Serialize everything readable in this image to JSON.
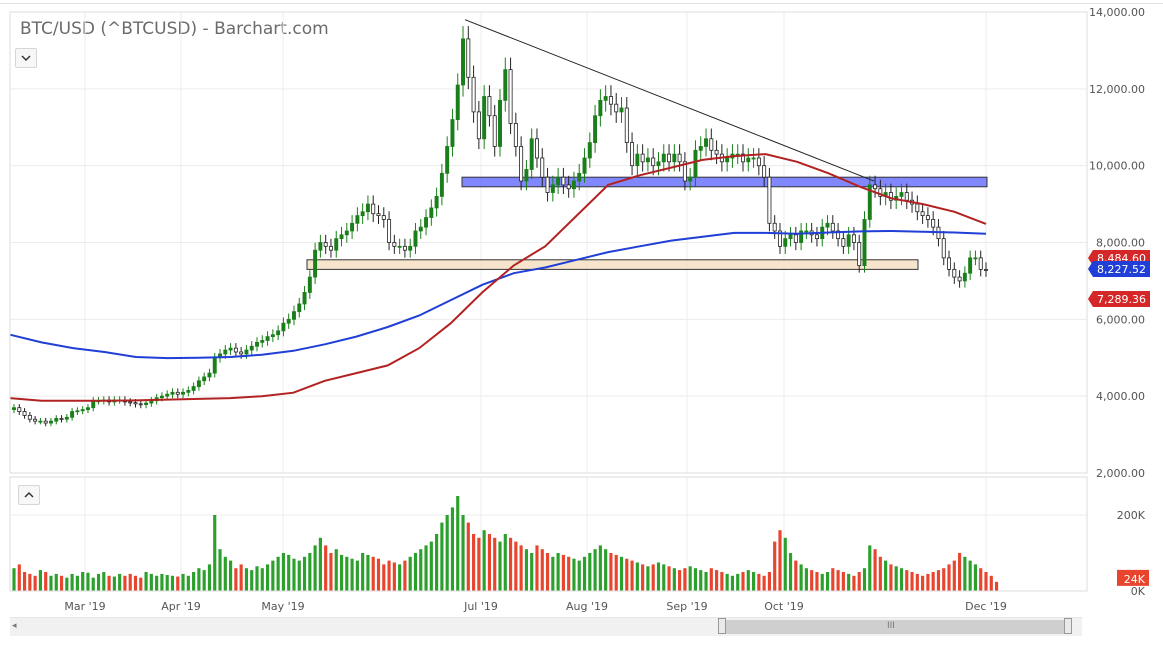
{
  "header": {
    "title": "BTC/USD (^BTCUSD) - Barchart.com"
  },
  "chart_data": {
    "type": "candlestick",
    "symbol": "BTC/USD",
    "price_axis": {
      "min": 2000,
      "max": 14000,
      "ticks": [
        "2,000.00",
        "4,000.00",
        "6,000.00",
        "8,000.00",
        "10,000.00",
        "12,000.00",
        "14,000.00"
      ]
    },
    "volume_axis": {
      "ticks": [
        "200K",
        "0K"
      ],
      "current_label": "24K",
      "current_value": 24000,
      "ylim": [
        0,
        300000
      ]
    },
    "x_labels": [
      "Mar '19",
      "Apr '19",
      "May '19",
      "Jul '19",
      "Aug '19",
      "Sep '19",
      "Oct '19",
      "Dec '19"
    ],
    "price_tags": [
      {
        "label": "8,484.60",
        "value": 8484.6,
        "color": "#d62728"
      },
      {
        "label": "8,227.52",
        "value": 8227.52,
        "color": "#1f3fd6"
      },
      {
        "label": "7,289.36",
        "value": 7289.36,
        "color": "#d62728"
      }
    ],
    "ma_fast": {
      "color": "#b22222",
      "values": [
        3950,
        3880,
        3880,
        3880,
        3890,
        3910,
        3930,
        3950,
        4000,
        4090,
        4400,
        4600,
        4800,
        5250,
        5900,
        6700,
        7400,
        7900,
        8700,
        9500,
        9750,
        9950,
        10150,
        10250,
        10300,
        10100,
        9800,
        9450,
        9150,
        9000,
        8800,
        8484
      ]
    },
    "ma_slow": {
      "color": "#1f3fd6",
      "values": [
        5600,
        5400,
        5250,
        5150,
        5020,
        4990,
        5000,
        5020,
        5080,
        5180,
        5350,
        5550,
        5800,
        6100,
        6500,
        6900,
        7200,
        7350,
        7550,
        7750,
        7900,
        8050,
        8150,
        8250,
        8250,
        8230,
        8260,
        8290,
        8300,
        8280,
        8260,
        8227
      ]
    },
    "trendline": {
      "from": {
        "label": "Jul '19",
        "price": 13800
      },
      "to": {
        "label": "Oct '19",
        "price": 9600
      }
    },
    "zones": [
      {
        "color": "#6b73ff",
        "from_price": 9450,
        "to_price": 9700
      },
      {
        "color": "#f5dfc3",
        "from_price": 7300,
        "to_price": 7550
      }
    ],
    "candles": [
      [
        3650,
        3700,
        3600,
        3500,
        3400,
        3350,
        3350,
        3300,
        3350,
        3420,
        3400,
        3450,
        3600,
        3620,
        3650,
        3700,
        3880,
        3880,
        3900,
        3850,
        3900,
        3900,
        3850,
        3830,
        3800,
        3780,
        3820,
        3880,
        3960,
        4000,
        4050,
        4100,
        4050,
        4100,
        4150,
        4250,
        4400,
        4500,
        4600,
        5000,
        5100,
        5200,
        5250,
        5150,
        5100,
        5200,
        5300,
        5400,
        5450,
        5550,
        5600,
        5700,
        5900,
        6000,
        6200,
        6400,
        6700,
        7100,
        7800,
        8000,
        7900,
        7800,
        8100,
        8200,
        8300,
        8500,
        8700,
        8800,
        9000,
        8750,
        8700,
        8600,
        8000,
        7900,
        7900,
        7800,
        7900,
        8300,
        8400,
        8650,
        8900,
        9200,
        9800,
        10500,
        11200,
        12100,
        13300,
        12300,
        11400,
        10700,
        11800,
        11300,
        10500,
        11700,
        12500,
        11100,
        10500,
        9600,
        9900,
        10700,
        10200,
        9700,
        9300,
        9500,
        9700,
        9500,
        9400,
        9600,
        9800,
        10200,
        10600,
        11300,
        11700,
        11800,
        11600,
        11400,
        11500,
        10600,
        10000,
        10300,
        10100,
        10200,
        10000,
        10100,
        10300,
        10100,
        10300,
        10100,
        9600,
        9700,
        10400,
        10500,
        10700,
        10400,
        10300,
        10100,
        10200,
        10300,
        10300,
        10100,
        10200,
        10200,
        10000,
        9700,
        8500,
        8300,
        7900,
        8100,
        8200,
        8000,
        8300,
        8300,
        8200,
        8100,
        8400,
        8500,
        8300,
        8100,
        7900,
        8200,
        8000,
        7400,
        8600,
        9500,
        9400,
        9200,
        9300,
        9100,
        9200,
        9300,
        9100,
        9000,
        8800,
        8700,
        8600,
        8400,
        8100,
        7600,
        7300,
        7100,
        7000,
        7200,
        7600,
        7600,
        7300
      ],
      [
        3700,
        3600,
        3500,
        3400,
        3350,
        3350,
        3300,
        3350,
        3420,
        3400,
        3450,
        3600,
        3620,
        3650,
        3700,
        3880,
        3880,
        3900,
        3850,
        3900,
        3900,
        3850,
        3830,
        3800,
        3780,
        3820,
        3880,
        3960,
        4000,
        4050,
        4100,
        4050,
        4100,
        4150,
        4250,
        4400,
        4500,
        4600,
        5000,
        5100,
        5200,
        5250,
        5150,
        5100,
        5200,
        5300,
        5400,
        5450,
        5550,
        5600,
        5700,
        5900,
        6000,
        6200,
        6400,
        6700,
        7100,
        7800,
        8000,
        7900,
        7800,
        8100,
        8200,
        8300,
        8500,
        8700,
        8800,
        9000,
        8750,
        8700,
        8600,
        8000,
        7900,
        7900,
        7800,
        7900,
        8300,
        8400,
        8650,
        8900,
        9200,
        9800,
        10500,
        11200,
        12100,
        13300,
        12300,
        11400,
        10700,
        11800,
        11300,
        10500,
        11700,
        12500,
        11100,
        10500,
        9600,
        9900,
        10700,
        10200,
        9700,
        9300,
        9500,
        9700,
        9500,
        9400,
        9600,
        9800,
        10200,
        10600,
        11300,
        11700,
        11800,
        11600,
        11400,
        11500,
        10600,
        10000,
        10300,
        10100,
        10200,
        10000,
        10100,
        10300,
        10100,
        10300,
        10100,
        9600,
        9700,
        10400,
        10500,
        10700,
        10400,
        10300,
        10100,
        10200,
        10300,
        10300,
        10100,
        10200,
        10200,
        10000,
        9700,
        8500,
        8300,
        7900,
        8100,
        8200,
        8000,
        8300,
        8300,
        8200,
        8100,
        8400,
        8500,
        8300,
        8100,
        7900,
        8200,
        8000,
        7400,
        8600,
        9500,
        9400,
        9200,
        9300,
        9100,
        9200,
        9300,
        9100,
        9000,
        8800,
        8700,
        8600,
        8400,
        8100,
        7600,
        7300,
        7100,
        7000,
        7200,
        7600,
        7600,
        7300,
        7289
      ]
    ],
    "volume": [
      60,
      70,
      50,
      45,
      40,
      55,
      50,
      40,
      45,
      40,
      35,
      45,
      40,
      50,
      48,
      35,
      45,
      50,
      40,
      38,
      45,
      40,
      45,
      40,
      35,
      50,
      45,
      40,
      45,
      42,
      40,
      38,
      45,
      40,
      50,
      60,
      55,
      70,
      200,
      110,
      90,
      80,
      60,
      70,
      60,
      55,
      65,
      60,
      70,
      80,
      90,
      100,
      95,
      85,
      80,
      90,
      100,
      120,
      140,
      120,
      100,
      110,
      95,
      90,
      85,
      80,
      100,
      95,
      90,
      85,
      70,
      80,
      75,
      70,
      80,
      90,
      100,
      110,
      120,
      130,
      150,
      180,
      200,
      220,
      250,
      200,
      180,
      150,
      140,
      160,
      150,
      140,
      130,
      150,
      140,
      130,
      120,
      110,
      100,
      120,
      110,
      100,
      90,
      100,
      95,
      90,
      85,
      80,
      90,
      100,
      110,
      120,
      110,
      100,
      95,
      90,
      85,
      80,
      75,
      70,
      65,
      70,
      75,
      70,
      65,
      60,
      55,
      60,
      65,
      60,
      55,
      50,
      60,
      55,
      50,
      45,
      40,
      45,
      50,
      55,
      50,
      45,
      40,
      50,
      130,
      160,
      140,
      100,
      80,
      70,
      60,
      55,
      50,
      45,
      50,
      60,
      55,
      50,
      45,
      40,
      50,
      60,
      120,
      110,
      90,
      80,
      70,
      65,
      60,
      55,
      50,
      45,
      40,
      45,
      50,
      55,
      60,
      70,
      80,
      100,
      90,
      80,
      70,
      60,
      50,
      40,
      24
    ]
  }
}
